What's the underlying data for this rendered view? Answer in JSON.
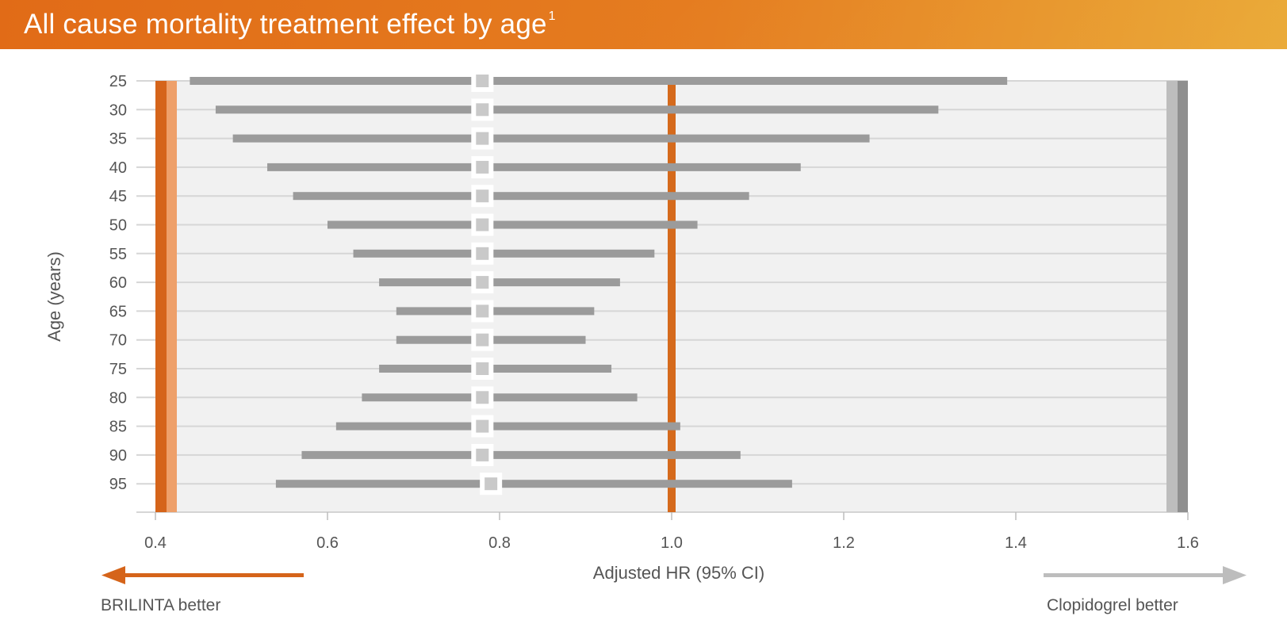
{
  "header": {
    "title": "All cause mortality treatment effect by age",
    "footnote_marker": "1"
  },
  "chart_data": {
    "type": "forest",
    "title": "All cause mortality treatment effect by age",
    "xlabel": "Adjusted HR (95% CI)",
    "ylabel": "Age (years)",
    "xlim": [
      0.4,
      1.6
    ],
    "xticks": [
      "0.4",
      "0.6",
      "0.8",
      "1.0",
      "1.2",
      "1.4",
      "1.6"
    ],
    "reference_line": 1.0,
    "categories": [
      "25",
      "30",
      "35",
      "40",
      "45",
      "50",
      "55",
      "60",
      "65",
      "70",
      "75",
      "80",
      "85",
      "90",
      "95"
    ],
    "hr": [
      0.78,
      0.78,
      0.78,
      0.78,
      0.78,
      0.78,
      0.78,
      0.78,
      0.78,
      0.78,
      0.78,
      0.78,
      0.78,
      0.78,
      0.79
    ],
    "lower": [
      0.44,
      0.47,
      0.49,
      0.53,
      0.56,
      0.6,
      0.63,
      0.66,
      0.68,
      0.68,
      0.66,
      0.64,
      0.61,
      0.57,
      0.54
    ],
    "upper": [
      1.39,
      1.31,
      1.23,
      1.15,
      1.09,
      1.03,
      0.98,
      0.94,
      0.91,
      0.9,
      0.93,
      0.96,
      1.01,
      1.08,
      1.14
    ],
    "grid": true,
    "left_label": "BRILINTA better",
    "right_label": "Clopidogrel better",
    "colors": {
      "ci": "#9b9b9b",
      "point": "#c9c9c9",
      "reference": "#d56a1c",
      "left_band_dark": "#d5641a",
      "left_band_light": "#eea06a",
      "right_band_dark": "#8f8f8f",
      "right_band_light": "#bdbdbd",
      "plot_bg": "#f1f1f1",
      "text": "#555555"
    }
  }
}
